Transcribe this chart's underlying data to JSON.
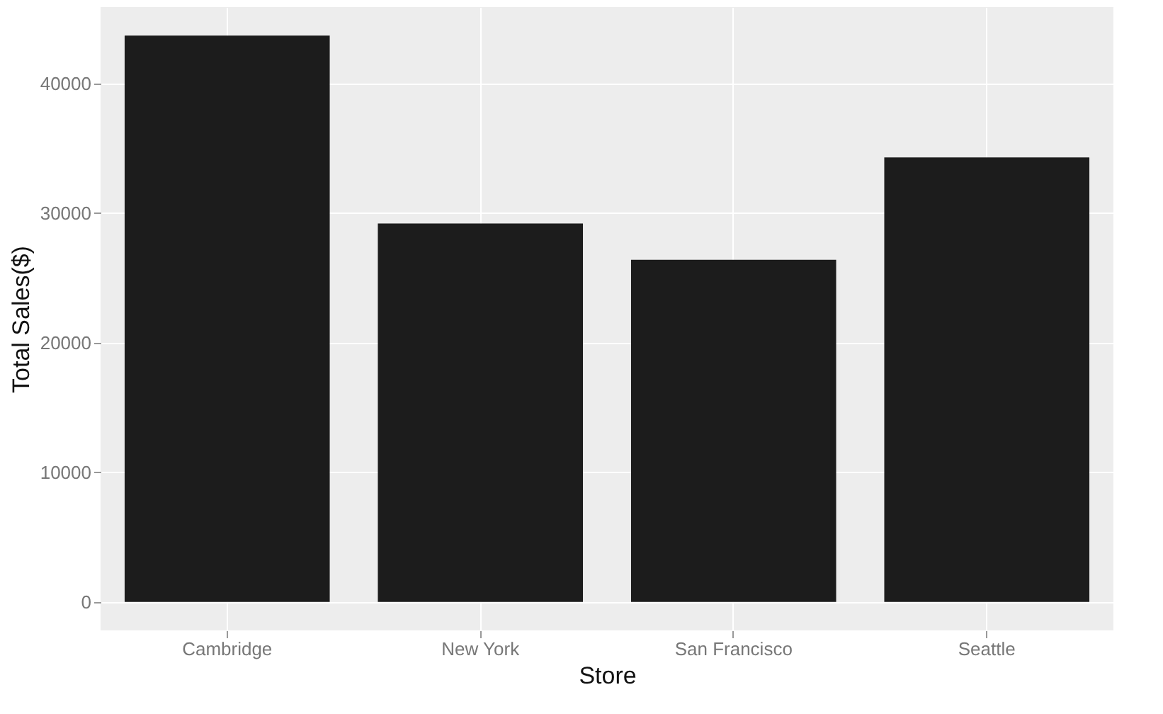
{
  "chart_data": {
    "type": "bar",
    "xlabel": "Store",
    "ylabel": "Total Sales($)",
    "categories": [
      "Cambridge",
      "New York",
      "San Francisco",
      "Seattle"
    ],
    "values": [
      43700,
      29200,
      26400,
      34300
    ],
    "color": "#1c1c1c",
    "ylim": [
      -2200,
      45900
    ],
    "yticks": [
      0,
      10000,
      20000,
      30000,
      40000
    ],
    "grid": true
  }
}
